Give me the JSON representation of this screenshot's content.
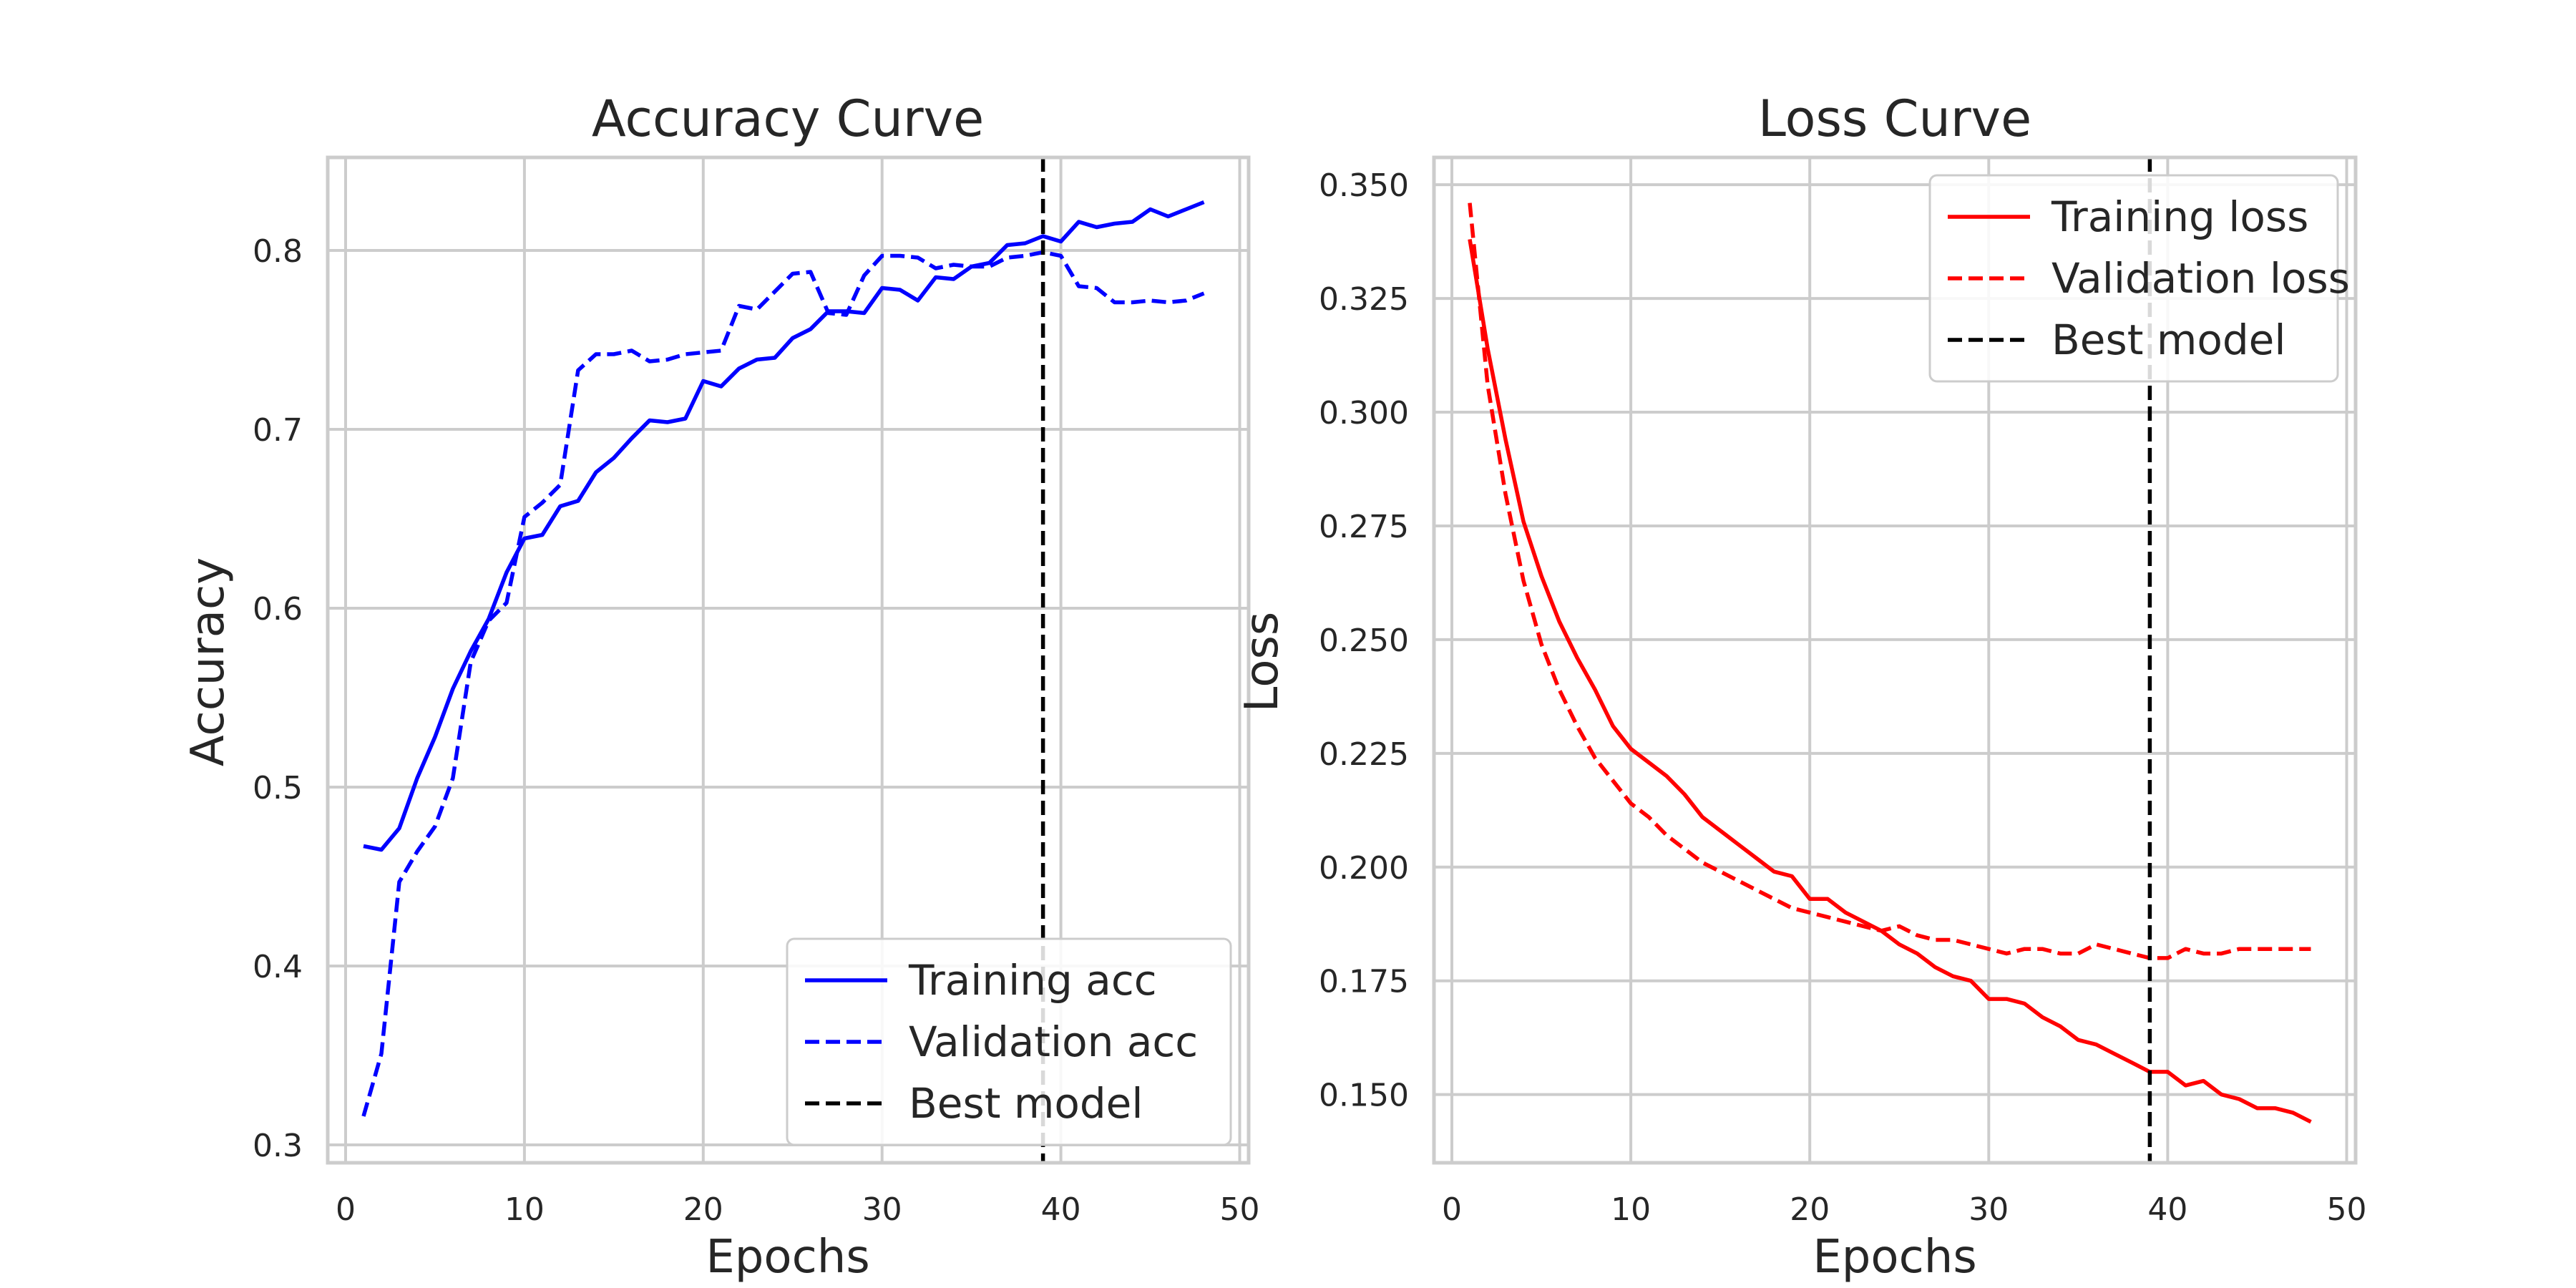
{
  "chart_data": [
    {
      "type": "line",
      "title": "Accuracy Curve",
      "xlabel": "Epochs",
      "ylabel": "Accuracy",
      "xlim": [
        -1,
        50.5
      ],
      "ylim": [
        0.29,
        0.852
      ],
      "xticks": [
        0,
        10,
        20,
        30,
        40,
        50
      ],
      "yticks": [
        0.3,
        0.4,
        0.5,
        0.6,
        0.7,
        0.8
      ],
      "grid": true,
      "legend_position": "lower right",
      "best_model_epoch": 39,
      "series": [
        {
          "name": "Training acc",
          "color": "#0000ff",
          "style": "solid",
          "x": [
            1,
            2,
            3,
            4,
            5,
            6,
            7,
            8,
            9,
            10,
            11,
            12,
            13,
            14,
            15,
            16,
            17,
            18,
            19,
            20,
            21,
            22,
            23,
            24,
            25,
            26,
            27,
            28,
            29,
            30,
            31,
            32,
            33,
            34,
            35,
            36,
            37,
            38,
            39,
            40,
            41,
            42,
            43,
            44,
            45,
            46,
            47,
            48
          ],
          "values": [
            0.467,
            0.465,
            0.477,
            0.505,
            0.528,
            0.555,
            0.576,
            0.594,
            0.62,
            0.639,
            0.641,
            0.657,
            0.66,
            0.676,
            0.684,
            0.695,
            0.705,
            0.704,
            0.706,
            0.727,
            0.724,
            0.734,
            0.739,
            0.74,
            0.751,
            0.756,
            0.766,
            0.766,
            0.765,
            0.779,
            0.778,
            0.772,
            0.785,
            0.784,
            0.791,
            0.793,
            0.803,
            0.804,
            0.808,
            0.805,
            0.816,
            0.813,
            0.815,
            0.816,
            0.823,
            0.819,
            0.823,
            0.827
          ]
        },
        {
          "name": "Validation acc",
          "color": "#0000ff",
          "style": "dashed",
          "x": [
            1,
            2,
            3,
            4,
            5,
            6,
            7,
            8,
            9,
            10,
            11,
            12,
            13,
            14,
            15,
            16,
            17,
            18,
            19,
            20,
            21,
            22,
            23,
            24,
            25,
            26,
            27,
            28,
            29,
            30,
            31,
            32,
            33,
            34,
            35,
            36,
            37,
            38,
            39,
            40,
            41,
            42,
            43,
            44,
            45,
            46,
            47,
            48
          ],
          "values": [
            0.316,
            0.351,
            0.447,
            0.464,
            0.478,
            0.505,
            0.57,
            0.593,
            0.603,
            0.651,
            0.659,
            0.669,
            0.733,
            0.742,
            0.742,
            0.744,
            0.738,
            0.739,
            0.742,
            0.743,
            0.744,
            0.769,
            0.767,
            0.777,
            0.787,
            0.788,
            0.765,
            0.764,
            0.786,
            0.797,
            0.797,
            0.796,
            0.79,
            0.792,
            0.791,
            0.791,
            0.796,
            0.797,
            0.799,
            0.797,
            0.78,
            0.779,
            0.771,
            0.771,
            0.772,
            0.771,
            0.772,
            0.776
          ]
        }
      ]
    },
    {
      "type": "line",
      "title": "Loss Curve",
      "xlabel": "Epochs",
      "ylabel": "Loss",
      "xlim": [
        -1,
        50.5
      ],
      "ylim": [
        0.135,
        0.356
      ],
      "xticks": [
        0,
        10,
        20,
        30,
        40,
        50
      ],
      "yticks": [
        0.15,
        0.175,
        0.2,
        0.225,
        0.25,
        0.275,
        0.3,
        0.325,
        0.35
      ],
      "ytick_labels": [
        "0.150",
        "0.175",
        "0.200",
        "0.225",
        "0.250",
        "0.275",
        "0.300",
        "0.325",
        "0.350"
      ],
      "grid": true,
      "legend_position": "upper right",
      "best_model_epoch": 39,
      "series": [
        {
          "name": "Training loss",
          "color": "#ff0000",
          "style": "solid",
          "x": [
            1,
            2,
            3,
            4,
            5,
            6,
            7,
            8,
            9,
            10,
            11,
            12,
            13,
            14,
            15,
            16,
            17,
            18,
            19,
            20,
            21,
            22,
            23,
            24,
            25,
            26,
            27,
            28,
            29,
            30,
            31,
            32,
            33,
            34,
            35,
            36,
            37,
            38,
            39,
            40,
            41,
            42,
            43,
            44,
            45,
            46,
            47,
            48
          ],
          "values": [
            0.338,
            0.314,
            0.294,
            0.276,
            0.264,
            0.254,
            0.246,
            0.239,
            0.231,
            0.226,
            0.223,
            0.22,
            0.216,
            0.211,
            0.208,
            0.205,
            0.202,
            0.199,
            0.198,
            0.193,
            0.193,
            0.19,
            0.188,
            0.186,
            0.183,
            0.181,
            0.178,
            0.176,
            0.175,
            0.171,
            0.171,
            0.17,
            0.167,
            0.165,
            0.162,
            0.161,
            0.159,
            0.157,
            0.155,
            0.155,
            0.152,
            0.153,
            0.15,
            0.149,
            0.147,
            0.147,
            0.146,
            0.144
          ]
        },
        {
          "name": "Validation loss",
          "color": "#ff0000",
          "style": "dashed",
          "x": [
            1,
            2,
            3,
            4,
            5,
            6,
            7,
            8,
            9,
            10,
            11,
            12,
            13,
            14,
            15,
            16,
            17,
            18,
            19,
            20,
            21,
            22,
            23,
            24,
            25,
            26,
            27,
            28,
            29,
            30,
            31,
            32,
            33,
            34,
            35,
            36,
            37,
            38,
            39,
            40,
            41,
            42,
            43,
            44,
            45,
            46,
            47,
            48
          ],
          "values": [
            0.346,
            0.306,
            0.282,
            0.263,
            0.249,
            0.239,
            0.231,
            0.224,
            0.219,
            0.214,
            0.211,
            0.207,
            0.204,
            0.201,
            0.199,
            0.197,
            0.195,
            0.193,
            0.191,
            0.19,
            0.189,
            0.188,
            0.187,
            0.186,
            0.187,
            0.185,
            0.184,
            0.184,
            0.183,
            0.182,
            0.181,
            0.182,
            0.182,
            0.181,
            0.181,
            0.183,
            0.182,
            0.181,
            0.18,
            0.18,
            0.182,
            0.181,
            0.181,
            0.182,
            0.182,
            0.182,
            0.182,
            0.182
          ]
        }
      ]
    }
  ],
  "legend_best_model_label": "Best model",
  "best_model_color": "#000000"
}
